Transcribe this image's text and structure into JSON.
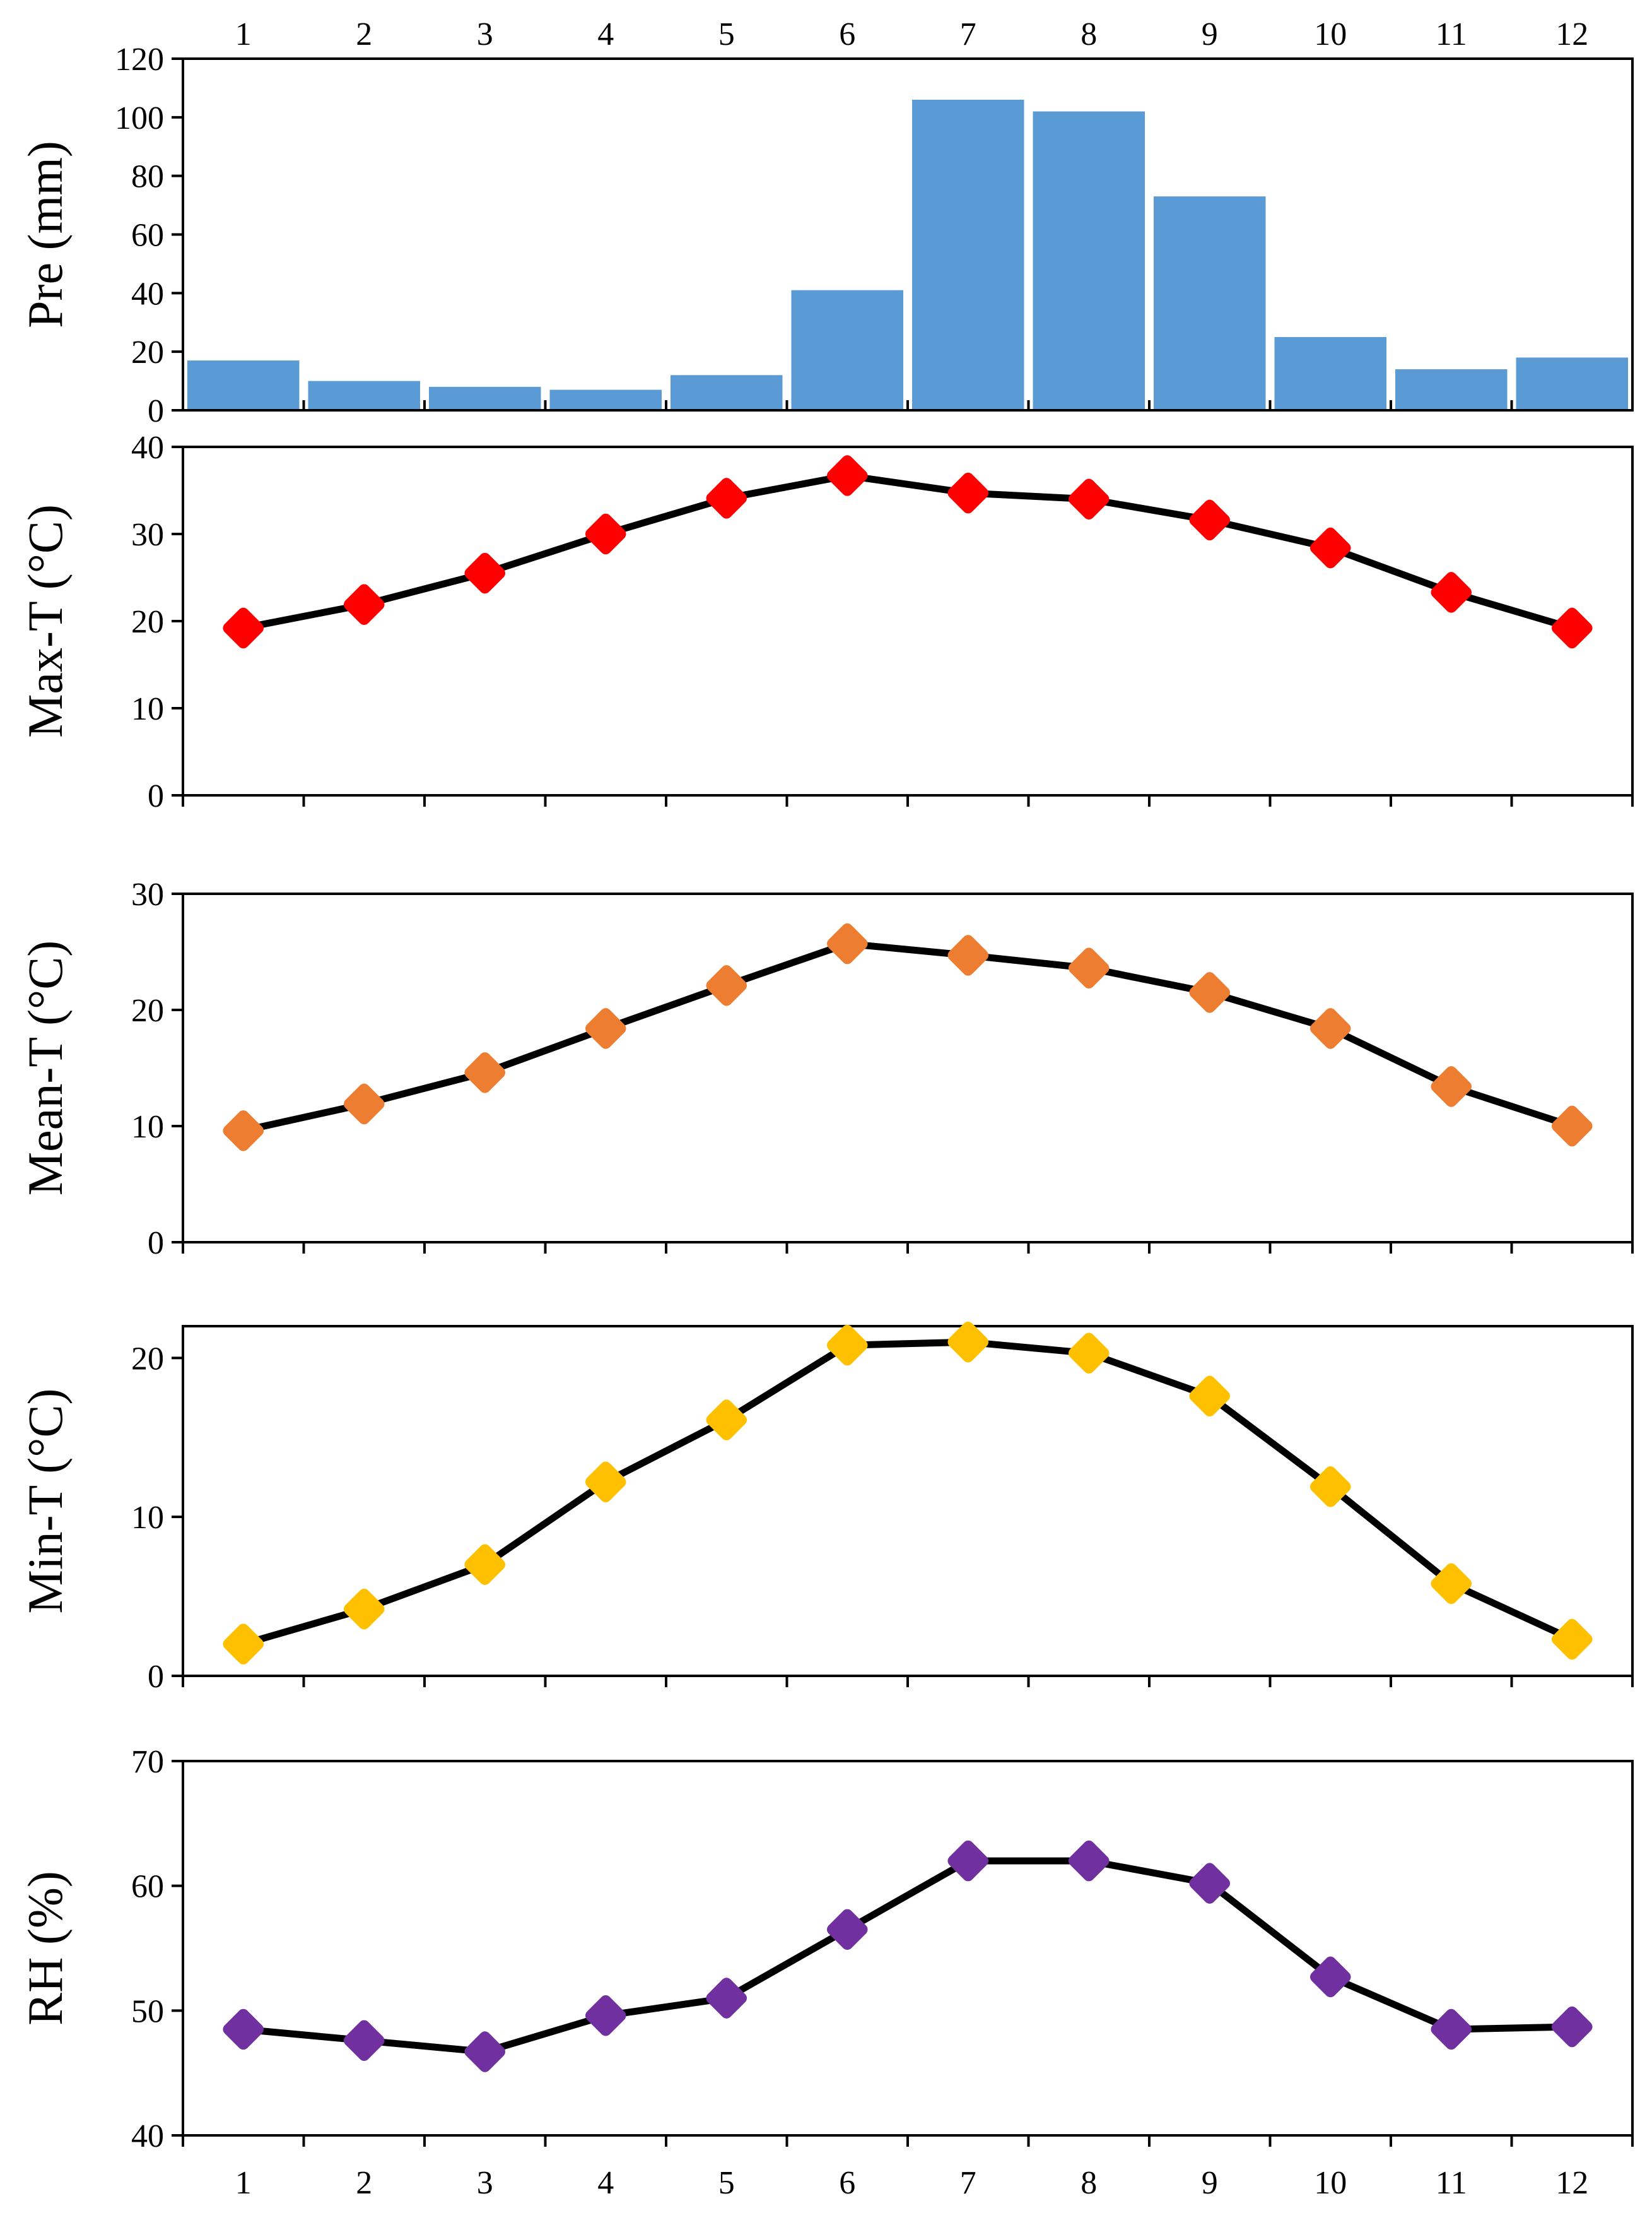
{
  "chart_data": [
    {
      "type": "bar",
      "ylabel": "Pre (mm)",
      "categories": [
        "1",
        "2",
        "3",
        "4",
        "5",
        "6",
        "7",
        "8",
        "9",
        "10",
        "11",
        "12"
      ],
      "values": [
        17,
        10,
        8,
        7,
        12,
        41,
        106,
        102,
        73,
        25,
        14,
        18
      ],
      "ylim": [
        0,
        120
      ],
      "yticks": [
        0,
        20,
        40,
        60,
        80,
        100,
        120
      ],
      "bar_color": "#5b9bd5",
      "xtick_labels_top": true
    },
    {
      "type": "line",
      "ylabel": "Max-T (°C)",
      "categories": [
        "1",
        "2",
        "3",
        "4",
        "5",
        "6",
        "7",
        "8",
        "9",
        "10",
        "11",
        "12"
      ],
      "values": [
        19.2,
        21.9,
        25.5,
        30.0,
        34.1,
        36.7,
        34.7,
        34.0,
        31.6,
        28.4,
        23.3,
        19.2
      ],
      "ylim": [
        0,
        40
      ],
      "yticks": [
        0,
        10,
        20,
        30,
        40
      ],
      "marker_color": "#ff0000"
    },
    {
      "type": "line",
      "ylabel": "Mean-T (°C)",
      "categories": [
        "1",
        "2",
        "3",
        "4",
        "5",
        "6",
        "7",
        "8",
        "9",
        "10",
        "11",
        "12"
      ],
      "values": [
        9.6,
        11.9,
        14.6,
        18.4,
        22.1,
        25.7,
        24.7,
        23.6,
        21.5,
        18.4,
        13.4,
        10.0
      ],
      "ylim": [
        0,
        30
      ],
      "yticks": [
        0,
        10,
        20,
        30
      ],
      "marker_color": "#ed7d31"
    },
    {
      "type": "line",
      "ylabel": "Min-T (°C)",
      "categories": [
        "1",
        "2",
        "3",
        "4",
        "5",
        "6",
        "7",
        "8",
        "9",
        "10",
        "11",
        "12"
      ],
      "values": [
        2.0,
        4.2,
        7.0,
        12.2,
        16.1,
        20.8,
        21.0,
        20.3,
        17.6,
        11.9,
        5.8,
        2.3
      ],
      "ylim": [
        0,
        22
      ],
      "yticks": [
        0,
        10,
        20
      ],
      "marker_color": "#ffc000"
    },
    {
      "type": "line",
      "ylabel": "RH (%)",
      "categories": [
        "1",
        "2",
        "3",
        "4",
        "5",
        "6",
        "7",
        "8",
        "9",
        "10",
        "11",
        "12"
      ],
      "values": [
        48.5,
        47.6,
        46.7,
        49.6,
        51.0,
        56.5,
        62.0,
        62.0,
        60.2,
        52.7,
        48.5,
        48.7
      ],
      "ylim": [
        40,
        70
      ],
      "yticks": [
        40,
        50,
        60,
        70
      ],
      "marker_color": "#7030a0",
      "xtick_labels_bottom": true
    }
  ]
}
